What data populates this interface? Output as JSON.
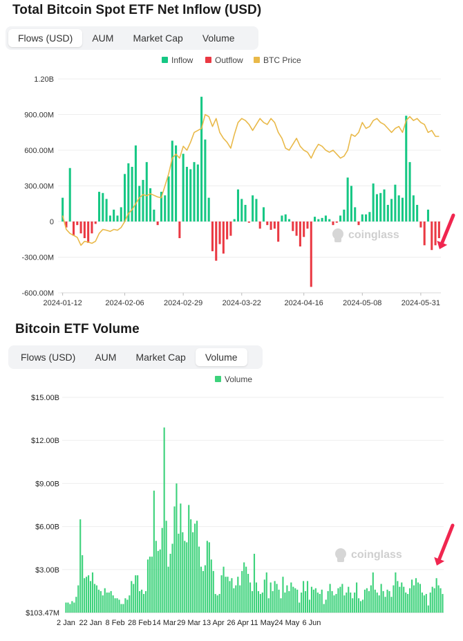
{
  "chart1": {
    "title": "Total Bitcoin Spot ETF Net Inflow (USD)",
    "tabs": [
      "Flows (USD)",
      "AUM",
      "Market Cap",
      "Volume"
    ],
    "active_tab": 0
  },
  "chart2": {
    "title": "Bitcoin ETF Volume",
    "tabs": [
      "Flows (USD)",
      "AUM",
      "Market Cap",
      "Volume"
    ],
    "active_tab": 3
  },
  "watermark": "coinglass",
  "colors": {
    "inflow": "#16c784",
    "outflow": "#ea3943",
    "btc_price": "#e9b949",
    "volume": "#3dd27b",
    "arrow": "#f0264f"
  },
  "chart_data": [
    {
      "type": "bar",
      "title": "Total Bitcoin Spot ETF Net Inflow (USD)",
      "legend": [
        "Inflow",
        "Outflow",
        "BTC Price"
      ],
      "legend_position": "top-center",
      "y_ticks": [
        "1.20B",
        "900.00M",
        "600.00M",
        "300.00M",
        "0",
        "-300.00M",
        "-600.00M"
      ],
      "ylim": [
        -600,
        1200
      ],
      "y_unit": "M USD",
      "x_ticks": [
        "2024-01-12",
        "2024-02-06",
        "2024-02-29",
        "2024-03-22",
        "2024-04-16",
        "2024-05-08",
        "2024-05-31"
      ],
      "x_tick_index": [
        0,
        17,
        33,
        49,
        66,
        82,
        98
      ],
      "net_flow": [
        200,
        -50,
        450,
        -120,
        -30,
        -100,
        -140,
        -180,
        -100,
        -20,
        250,
        240,
        190,
        50,
        100,
        50,
        120,
        400,
        490,
        460,
        640,
        300,
        350,
        500,
        280,
        100,
        -30,
        250,
        220,
        380,
        680,
        640,
        -140,
        570,
        460,
        440,
        500,
        480,
        1050,
        690,
        200,
        -250,
        -330,
        -190,
        -270,
        -150,
        -120,
        20,
        270,
        190,
        140,
        -10,
        220,
        190,
        -60,
        120,
        -30,
        -70,
        -60,
        -170,
        50,
        60,
        20,
        -80,
        -120,
        -210,
        -130,
        -60,
        -550,
        40,
        20,
        30,
        50,
        20,
        -30,
        -10,
        50,
        100,
        370,
        300,
        120,
        -30,
        60,
        60,
        80,
        320,
        230,
        240,
        270,
        140,
        190,
        310,
        220,
        200,
        890,
        500,
        220,
        140,
        -50,
        -200,
        100,
        -240,
        -200,
        -140
      ],
      "btc_price_k": [
        46.5,
        43,
        42,
        41.5,
        41,
        39,
        40,
        39.8,
        39.5,
        40,
        42,
        43,
        42.8,
        42.5,
        43,
        42.8,
        43.5,
        45,
        47,
        48,
        49.5,
        51,
        51.8,
        51.5,
        52,
        51.6,
        51.2,
        51,
        54,
        57,
        61,
        62,
        61,
        64,
        63,
        65,
        67.5,
        68,
        68.5,
        72,
        71.5,
        69,
        71,
        67.5,
        66,
        65,
        63.5,
        67,
        70,
        71,
        70.5,
        69.5,
        68,
        69.5,
        71,
        70,
        69.5,
        71,
        70,
        67.5,
        66,
        63.5,
        63,
        64.5,
        66,
        64,
        63,
        62.5,
        61,
        63,
        64.5,
        64,
        63,
        62.5,
        63,
        62,
        61,
        61.5,
        63,
        67,
        66.5,
        67.5,
        70,
        68.5,
        69,
        70.5,
        71,
        70,
        69.5,
        68.5,
        67.5,
        68.5,
        69,
        67.5,
        70.5,
        71.5,
        70.5,
        71,
        70,
        69.5,
        67.5,
        68,
        66.5,
        66.5
      ]
    },
    {
      "type": "bar",
      "title": "Bitcoin ETF Volume",
      "legend": [
        "Volume"
      ],
      "legend_position": "top-center",
      "y_ticks": [
        "$15.00B",
        "$12.00B",
        "$9.00B",
        "$6.00B",
        "$3.00B",
        "$103.47M"
      ],
      "ylim": [
        0,
        15.0
      ],
      "y_unit": "B USD",
      "x_ticks": [
        "2 Jan",
        "22 Jan",
        "8 Feb",
        "28 Feb",
        "14 Mar",
        "29 Mar",
        "13 Apr",
        "26 Apr",
        "11 May",
        "24 May",
        "6 Jun"
      ],
      "x_tick_index": [
        0,
        12,
        24,
        36,
        48,
        60,
        72,
        84,
        96,
        108,
        120
      ],
      "values": [
        0.7,
        0.7,
        0.6,
        0.8,
        0.7,
        1.1,
        1.9,
        6.5,
        4.0,
        2.4,
        2.5,
        2.6,
        2.2,
        2.8,
        2.0,
        1.9,
        1.6,
        1.5,
        1.2,
        1.7,
        1.4,
        1.4,
        1.5,
        1.2,
        1.0,
        1.0,
        0.9,
        0.6,
        0.6,
        1.0,
        0.9,
        1.2,
        2.2,
        2.0,
        2.6,
        2.6,
        1.5,
        1.6,
        1.3,
        1.5,
        3.7,
        3.9,
        3.9,
        8.5,
        5.0,
        4.3,
        4.4,
        5.9,
        12.9,
        6.4,
        3.2,
        4.1,
        4.8,
        7.4,
        9.0,
        5.5,
        7.6,
        5.6,
        5.0,
        4.9,
        7.5,
        6.5,
        5.6,
        6.2,
        6.4,
        4.6,
        3.2,
        2.9,
        3.3,
        5.0,
        4.9,
        3.7,
        2.9,
        1.3,
        1.2,
        1.3,
        2.6,
        3.2,
        2.5,
        2.5,
        2.2,
        2.4,
        1.7,
        1.9,
        2.5,
        1.9,
        2.9,
        3.5,
        3.2,
        2.7,
        2.1,
        1.5,
        4.1,
        2.1,
        1.5,
        1.3,
        1.4,
        2.3,
        2.8,
        1.0,
        2.1,
        1.5,
        2.2,
        2.0,
        1.6,
        1.0,
        2.5,
        1.4,
        1.9,
        1.5,
        2.1,
        1.8,
        1.7,
        1.6,
        0.7,
        1.4,
        2.2,
        1.5,
        2.2,
        0.9,
        1.8,
        1.6,
        1.7,
        1.4,
        1.3,
        1.6,
        0.6,
        0.9,
        1.5,
        2.0,
        1.5,
        1.2,
        1.3,
        1.7,
        1.8,
        2.0,
        1.2,
        1.4,
        1.8,
        1.4,
        1.0,
        1.4,
        2.1,
        1.0,
        0.8,
        0.9,
        1.6,
        1.7,
        1.5,
        1.9,
        2.8,
        1.6,
        1.4,
        1.2,
        2.0,
        1.5,
        1.1,
        1.6,
        1.5,
        1.1,
        1.9,
        2.8,
        2.2,
        1.8,
        2.1,
        1.8,
        1.4,
        1.3,
        1.7,
        2.3,
        1.9,
        2.4,
        2.1,
        2.0,
        1.4,
        1.2,
        1.3,
        0.5,
        1.4,
        1.8,
        1.7,
        2.4,
        1.9,
        1.7,
        1.3
      ]
    }
  ]
}
